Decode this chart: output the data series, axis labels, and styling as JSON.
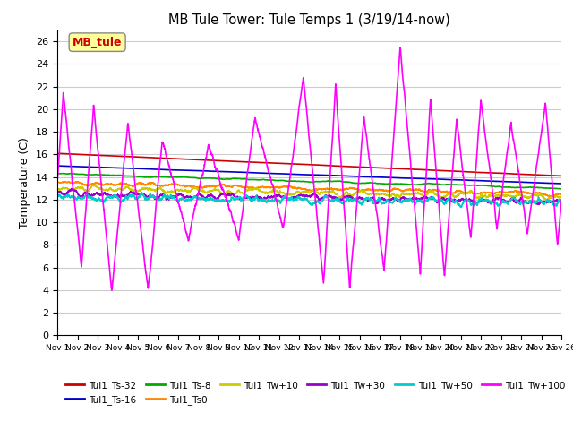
{
  "title": "MB Tule Tower: Tule Temps 1 (3/19/14-now)",
  "ylabel": "Temperature (C)",
  "ylim": [
    0,
    27
  ],
  "yticks": [
    0,
    2,
    4,
    6,
    8,
    10,
    12,
    14,
    16,
    18,
    20,
    22,
    24,
    26
  ],
  "legend_label": "MB_tule",
  "series_order": [
    "Tul1_Ts-32",
    "Tul1_Ts-16",
    "Tul1_Ts-8",
    "Tul1_Ts0",
    "Tul1_Tw+10",
    "Tul1_Tw+30",
    "Tul1_Tw+50",
    "Tul1_Tw+100"
  ],
  "series_colors": {
    "Tul1_Ts-32": "#cc0000",
    "Tul1_Ts-16": "#0000cc",
    "Tul1_Ts-8": "#00aa00",
    "Tul1_Ts0": "#ff8800",
    "Tul1_Tw+10": "#cccc00",
    "Tul1_Tw+30": "#9900cc",
    "Tul1_Tw+50": "#00cccc",
    "Tul1_Tw+100": "#ff00ff"
  },
  "background_color": "#ffffff",
  "grid_color": "#cccccc",
  "legend_row1": [
    "Tul1_Ts-32",
    "Tul1_Ts-16",
    "Tul1_Ts-8",
    "Tul1_Ts0",
    "Tul1_Tw+10",
    "Tul1_Tw+30"
  ],
  "legend_row2": [
    "Tul1_Tw+50",
    "Tul1_Tw+100"
  ]
}
